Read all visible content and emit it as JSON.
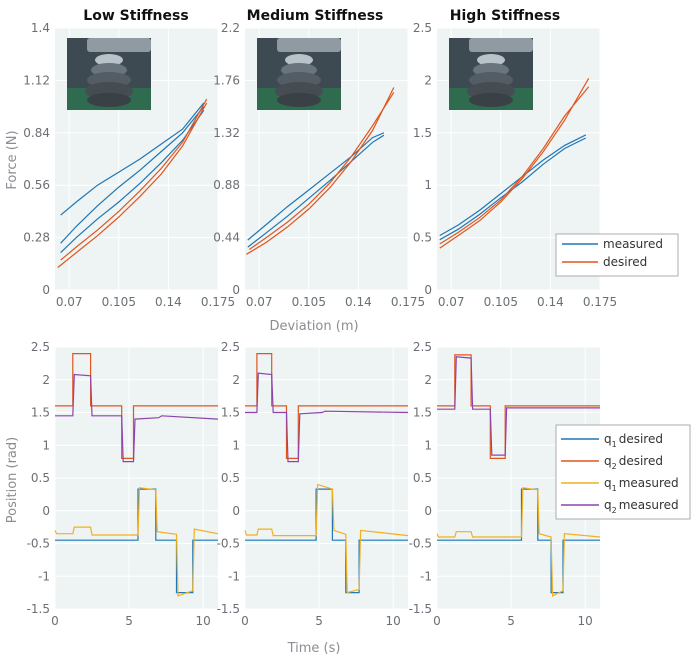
{
  "colors": {
    "measured": "#1f77b4",
    "desired": "#e0561e",
    "q1_desired": "#1f77b4",
    "q2_desired": "#e0561e",
    "q1_measured": "#f2b01e",
    "q2_measured": "#8e44ad",
    "panel_bg": "#eef3f3",
    "grid": "#ffffff"
  },
  "titles": [
    "Low Stiffness",
    "Medium Stiffness",
    "High Stiffness"
  ],
  "photo": {
    "label": "gripper-photo",
    "icon": "photo-icon"
  },
  "chart_data": [
    {
      "type": "line",
      "name": "force-low",
      "title": "Low Stiffness",
      "ylabel": "Force (N)",
      "xlabel": "",
      "xlim": [
        0.06,
        0.175
      ],
      "ylim": [
        0,
        1.4
      ],
      "xticks": [
        0.07,
        0.105,
        0.14,
        0.175
      ],
      "xtick_labels": [
        "0.07",
        "0.105",
        "0.14",
        "0.175"
      ],
      "yticks": [
        0,
        0.28,
        0.56,
        0.84,
        1.12,
        1.4
      ],
      "ytick_labels": [
        "0",
        "0.28",
        "0.56",
        "0.84",
        "1.12",
        "1.4"
      ],
      "series": [
        {
          "name": "measured",
          "key": "measured",
          "x": [
            0.064,
            0.075,
            0.09,
            0.105,
            0.12,
            0.135,
            0.15,
            0.165
          ],
          "y": [
            0.4,
            0.47,
            0.56,
            0.63,
            0.7,
            0.78,
            0.86,
            1.0
          ]
        },
        {
          "name": "measured",
          "key": "measured",
          "x": [
            0.064,
            0.075,
            0.09,
            0.105,
            0.12,
            0.135,
            0.15,
            0.165
          ],
          "y": [
            0.25,
            0.34,
            0.45,
            0.55,
            0.64,
            0.74,
            0.84,
            0.98
          ]
        },
        {
          "name": "measured",
          "key": "measured",
          "x": [
            0.064,
            0.075,
            0.09,
            0.105,
            0.12,
            0.135,
            0.15,
            0.165
          ],
          "y": [
            0.2,
            0.28,
            0.38,
            0.47,
            0.57,
            0.68,
            0.8,
            0.96
          ]
        },
        {
          "name": "desired",
          "key": "desired",
          "x": [
            0.062,
            0.075,
            0.09,
            0.105,
            0.12,
            0.135,
            0.15,
            0.167
          ],
          "y": [
            0.12,
            0.2,
            0.29,
            0.39,
            0.5,
            0.62,
            0.77,
            1.0
          ]
        },
        {
          "name": "desired",
          "key": "desired",
          "x": [
            0.064,
            0.075,
            0.09,
            0.105,
            0.12,
            0.135,
            0.15,
            0.167
          ],
          "y": [
            0.16,
            0.23,
            0.32,
            0.42,
            0.53,
            0.65,
            0.79,
            1.02
          ]
        }
      ]
    },
    {
      "type": "line",
      "name": "force-medium",
      "title": "Medium Stiffness",
      "ylabel": "",
      "xlabel": "Deviation (m)",
      "xlim": [
        0.06,
        0.175
      ],
      "ylim": [
        0,
        2.2
      ],
      "xticks": [
        0.07,
        0.105,
        0.14,
        0.175
      ],
      "xtick_labels": [
        "0.07",
        "0.105",
        "0.14",
        "0.175"
      ],
      "yticks": [
        0,
        0.44,
        0.88,
        1.32,
        1.76,
        2.2
      ],
      "ytick_labels": [
        "0",
        "0.44",
        "0.88",
        "1.32",
        "1.76",
        "2.2"
      ],
      "series": [
        {
          "name": "measured",
          "key": "measured",
          "x": [
            0.062,
            0.075,
            0.09,
            0.105,
            0.12,
            0.135,
            0.15,
            0.158
          ],
          "y": [
            0.42,
            0.55,
            0.7,
            0.84,
            0.98,
            1.12,
            1.28,
            1.32
          ]
        },
        {
          "name": "measured",
          "key": "measured",
          "x": [
            0.062,
            0.075,
            0.09,
            0.105,
            0.12,
            0.135,
            0.15,
            0.158
          ],
          "y": [
            0.36,
            0.48,
            0.62,
            0.77,
            0.92,
            1.08,
            1.24,
            1.3
          ]
        },
        {
          "name": "desired",
          "key": "desired",
          "x": [
            0.061,
            0.075,
            0.09,
            0.105,
            0.12,
            0.135,
            0.15,
            0.165
          ],
          "y": [
            0.3,
            0.4,
            0.53,
            0.68,
            0.86,
            1.08,
            1.34,
            1.7
          ]
        },
        {
          "name": "desired",
          "key": "desired",
          "x": [
            0.063,
            0.075,
            0.09,
            0.105,
            0.12,
            0.135,
            0.15,
            0.165
          ],
          "y": [
            0.34,
            0.44,
            0.57,
            0.72,
            0.9,
            1.12,
            1.38,
            1.66
          ]
        }
      ]
    },
    {
      "type": "line",
      "name": "force-high",
      "title": "High Stiffness",
      "ylabel": "",
      "xlabel": "",
      "xlim": [
        0.06,
        0.175
      ],
      "ylim": [
        0,
        2.5
      ],
      "xticks": [
        0.07,
        0.105,
        0.14,
        0.175
      ],
      "xtick_labels": [
        "0.07",
        "0.105",
        "0.14",
        "0.175"
      ],
      "yticks": [
        0,
        0.5,
        1,
        1.5,
        2,
        2.5
      ],
      "ytick_labels": [
        "0",
        "0.5",
        "1",
        "1.5",
        "2",
        "2.5"
      ],
      "legend": [
        "measured",
        "desired"
      ],
      "series": [
        {
          "name": "measured",
          "key": "measured",
          "x": [
            0.062,
            0.075,
            0.09,
            0.105,
            0.12,
            0.135,
            0.15,
            0.165
          ],
          "y": [
            0.52,
            0.62,
            0.76,
            0.92,
            1.08,
            1.24,
            1.38,
            1.48
          ]
        },
        {
          "name": "measured",
          "key": "measured",
          "x": [
            0.062,
            0.075,
            0.09,
            0.105,
            0.12,
            0.135,
            0.15,
            0.165
          ],
          "y": [
            0.48,
            0.58,
            0.72,
            0.88,
            1.03,
            1.2,
            1.35,
            1.45
          ]
        },
        {
          "name": "desired",
          "key": "desired",
          "x": [
            0.062,
            0.075,
            0.09,
            0.105,
            0.12,
            0.135,
            0.15,
            0.167
          ],
          "y": [
            0.4,
            0.52,
            0.66,
            0.84,
            1.06,
            1.32,
            1.62,
            2.02
          ]
        },
        {
          "name": "desired",
          "key": "desired",
          "x": [
            0.062,
            0.075,
            0.09,
            0.105,
            0.12,
            0.135,
            0.15,
            0.167
          ],
          "y": [
            0.44,
            0.55,
            0.69,
            0.86,
            1.08,
            1.35,
            1.66,
            1.94
          ]
        }
      ]
    },
    {
      "type": "line",
      "name": "position-low",
      "title": "",
      "ylabel": "Position (rad)",
      "xlabel": "",
      "xlim": [
        0,
        11
      ],
      "ylim": [
        -1.5,
        2.5
      ],
      "xticks": [
        0,
        5,
        10
      ],
      "xtick_labels": [
        "0",
        "5",
        "10"
      ],
      "yticks": [
        -1.5,
        -1,
        -0.5,
        0,
        0.5,
        1,
        1.5,
        2,
        2.5
      ],
      "ytick_labels": [
        "-1.5",
        "-1",
        "-0.5",
        "0",
        "0.5",
        "1",
        "1.5",
        "2",
        "2.5"
      ],
      "series": [
        {
          "name": "q1 desired",
          "key": "q1_desired",
          "x": [
            0,
            5.6,
            5.6,
            6.8,
            6.8,
            8.2,
            8.2,
            9.3,
            9.3,
            11
          ],
          "y": [
            -0.45,
            -0.45,
            0.33,
            0.33,
            -0.45,
            -0.45,
            -1.25,
            -1.25,
            -0.45,
            -0.45
          ]
        },
        {
          "name": "q2 desired",
          "key": "q2_desired",
          "x": [
            0,
            1.2,
            1.2,
            2.4,
            2.4,
            4.5,
            4.5,
            5.3,
            5.3,
            11
          ],
          "y": [
            1.6,
            1.6,
            2.4,
            2.4,
            1.6,
            1.6,
            0.8,
            0.8,
            1.6,
            1.6
          ]
        },
        {
          "name": "q1 measured",
          "key": "q1_measured",
          "x": [
            0,
            0.1,
            1.2,
            1.3,
            2.4,
            2.5,
            5.6,
            5.7,
            6.8,
            6.9,
            8.2,
            8.3,
            9.3,
            9.4,
            11
          ],
          "y": [
            -0.3,
            -0.35,
            -0.35,
            -0.25,
            -0.25,
            -0.37,
            -0.37,
            0.35,
            0.32,
            -0.32,
            -0.36,
            -1.3,
            -1.22,
            -0.28,
            -0.35
          ]
        },
        {
          "name": "q2 measured",
          "key": "q2_measured",
          "x": [
            0,
            1.2,
            1.3,
            2.4,
            2.5,
            4.5,
            4.6,
            5.3,
            5.4,
            7,
            7.2,
            11
          ],
          "y": [
            1.45,
            1.45,
            2.08,
            2.06,
            1.45,
            1.45,
            0.75,
            0.75,
            1.4,
            1.42,
            1.45,
            1.4
          ]
        }
      ]
    },
    {
      "type": "line",
      "name": "position-medium",
      "title": "",
      "ylabel": "",
      "xlabel": "Time (s)",
      "xlim": [
        0,
        11
      ],
      "ylim": [
        -1.5,
        2.5
      ],
      "xticks": [
        0,
        5,
        10
      ],
      "xtick_labels": [
        "0",
        "5",
        "10"
      ],
      "yticks": [
        -1.5,
        -1,
        -0.5,
        0,
        0.5,
        1,
        1.5,
        2,
        2.5
      ],
      "ytick_labels": [
        "-1.5",
        "-1",
        "-0.5",
        "0",
        "0.5",
        "1",
        "1.5",
        "2",
        "2.5"
      ],
      "series": [
        {
          "name": "q1 desired",
          "key": "q1_desired",
          "x": [
            0,
            4.8,
            4.8,
            5.9,
            5.9,
            6.8,
            6.8,
            7.7,
            7.7,
            11
          ],
          "y": [
            -0.45,
            -0.45,
            0.33,
            0.33,
            -0.45,
            -0.45,
            -1.25,
            -1.25,
            -0.45,
            -0.45
          ]
        },
        {
          "name": "q2 desired",
          "key": "q2_desired",
          "x": [
            0,
            0.8,
            0.8,
            1.8,
            1.8,
            2.8,
            2.8,
            3.6,
            3.6,
            11
          ],
          "y": [
            1.6,
            1.6,
            2.4,
            2.4,
            1.6,
            1.6,
            0.8,
            0.8,
            1.6,
            1.6
          ]
        },
        {
          "name": "q1 measured",
          "key": "q1_measured",
          "x": [
            0,
            0.1,
            0.8,
            0.9,
            1.8,
            1.9,
            4.8,
            4.9,
            5.9,
            6.0,
            6.8,
            6.9,
            7.7,
            7.8,
            11
          ],
          "y": [
            -0.3,
            -0.37,
            -0.37,
            -0.28,
            -0.28,
            -0.38,
            -0.38,
            0.4,
            0.33,
            -0.3,
            -0.36,
            -1.25,
            -1.2,
            -0.3,
            -0.38
          ]
        },
        {
          "name": "q2 measured",
          "key": "q2_measured",
          "x": [
            0,
            0.8,
            0.9,
            1.8,
            1.9,
            2.8,
            2.9,
            3.6,
            3.7,
            5.2,
            5.4,
            11
          ],
          "y": [
            1.5,
            1.5,
            2.1,
            2.08,
            1.5,
            1.5,
            0.75,
            0.75,
            1.48,
            1.5,
            1.52,
            1.5
          ]
        }
      ]
    },
    {
      "type": "line",
      "name": "position-high",
      "title": "",
      "ylabel": "",
      "xlabel": "",
      "xlim": [
        0,
        11
      ],
      "ylim": [
        -1.5,
        2.5
      ],
      "xticks": [
        0,
        5,
        10
      ],
      "xtick_labels": [
        "0",
        "5",
        "10"
      ],
      "yticks": [
        -1.5,
        -1,
        -0.5,
        0,
        0.5,
        1,
        1.5,
        2,
        2.5
      ],
      "ytick_labels": [
        "-1.5",
        "-1",
        "-0.5",
        "0",
        "0.5",
        "1",
        "1.5",
        "2",
        "2.5"
      ],
      "legend": [
        "q1 desired",
        "q2 desired",
        "q1 measured",
        "q2 measured"
      ],
      "series": [
        {
          "name": "q1 desired",
          "key": "q1_desired",
          "x": [
            0,
            5.7,
            5.7,
            6.8,
            6.8,
            7.7,
            7.7,
            8.5,
            8.5,
            11
          ],
          "y": [
            -0.45,
            -0.45,
            0.33,
            0.33,
            -0.45,
            -0.45,
            -1.25,
            -1.25,
            -0.45,
            -0.45
          ]
        },
        {
          "name": "q2 desired",
          "key": "q2_desired",
          "x": [
            0,
            1.2,
            1.2,
            2.3,
            2.3,
            3.6,
            3.6,
            4.6,
            4.6,
            11
          ],
          "y": [
            1.6,
            1.6,
            2.38,
            2.38,
            1.6,
            1.6,
            0.8,
            0.8,
            1.6,
            1.6
          ]
        },
        {
          "name": "q1 measured",
          "key": "q1_measured",
          "x": [
            0,
            0.1,
            1.2,
            1.3,
            2.3,
            2.4,
            5.7,
            5.8,
            6.8,
            6.9,
            7.7,
            7.8,
            8.5,
            8.6,
            11
          ],
          "y": [
            -0.35,
            -0.4,
            -0.4,
            -0.32,
            -0.32,
            -0.4,
            -0.4,
            0.35,
            0.32,
            -0.35,
            -0.4,
            -1.3,
            -1.22,
            -0.35,
            -0.4
          ]
        },
        {
          "name": "q2 measured",
          "key": "q2_measured",
          "x": [
            0,
            1.2,
            1.3,
            2.3,
            2.4,
            3.6,
            3.7,
            4.6,
            4.7,
            11
          ],
          "y": [
            1.55,
            1.55,
            2.35,
            2.33,
            1.55,
            1.55,
            0.85,
            0.85,
            1.57,
            1.57
          ]
        }
      ]
    }
  ],
  "legends": {
    "force": [
      {
        "key": "measured",
        "label": "measured"
      },
      {
        "key": "desired",
        "label": "desired"
      }
    ],
    "position": [
      {
        "key": "q1_desired",
        "prefix": "q",
        "sub": "1",
        "label": "desired"
      },
      {
        "key": "q2_desired",
        "prefix": "q",
        "sub": "2",
        "label": "desired"
      },
      {
        "key": "q1_measured",
        "prefix": "q",
        "sub": "1",
        "label": "measured"
      },
      {
        "key": "q2_measured",
        "prefix": "q",
        "sub": "2",
        "label": "measured"
      }
    ]
  },
  "axis_labels": {
    "force_y": "Force (N)",
    "force_x": "Deviation (m)",
    "position_y": "Position (rad)",
    "position_x": "Time (s)"
  }
}
